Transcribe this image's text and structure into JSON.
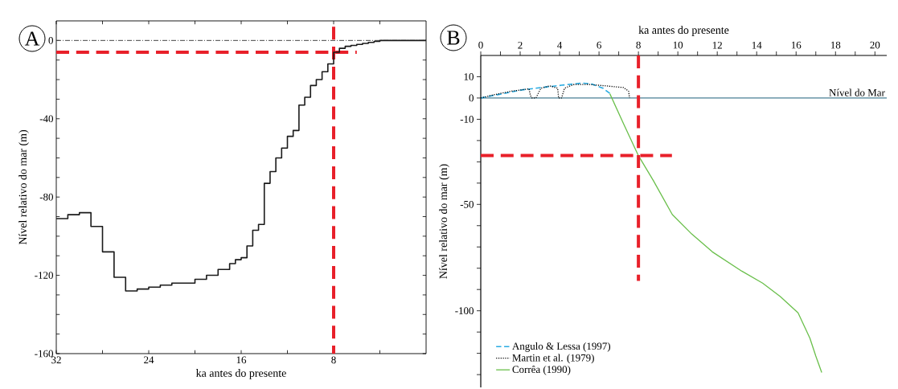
{
  "chart_data": [
    {
      "type": "step",
      "xlabel": "ka antes do presente",
      "ylabel": "Nível relativo do mar (m)",
      "annotations": [
        "A"
      ],
      "xlim": [
        32,
        0
      ],
      "ylim": [
        -160,
        10
      ],
      "xticks": [
        32,
        {
          "value": 28,
          "label": null
        },
        24,
        {
          "value": 20,
          "label": null
        },
        16,
        {
          "value": 12,
          "label": null
        },
        8,
        {
          "value": 4,
          "label": null
        }
      ],
      "yticks": [
        -160,
        {
          "value": -150,
          "label": null
        },
        {
          "value": -140,
          "label": null
        },
        {
          "value": -130,
          "label": null
        },
        -120,
        {
          "value": -110,
          "label": null
        },
        {
          "value": -100,
          "label": null
        },
        {
          "value": -90,
          "label": null
        },
        -80,
        {
          "value": -70,
          "label": null
        },
        {
          "value": -60,
          "label": null
        },
        {
          "value": -50,
          "label": null
        },
        -40,
        {
          "value": -30,
          "label": null
        },
        {
          "value": -20,
          "label": null
        },
        {
          "value": -10,
          "label": null
        },
        0
      ],
      "ref_lines": [
        {
          "axis": "y",
          "value": 0,
          "color": "#444444",
          "line_style": "dashdot"
        }
      ],
      "series": [
        {
          "type": "line",
          "color": "#e8202a",
          "line_style": "dashed",
          "x": [
            32,
            6
          ],
          "values": [
            -6,
            -6
          ]
        },
        {
          "type": "line",
          "color": "#e8202a",
          "line_style": "dashed",
          "x": [
            8,
            8
          ],
          "values": [
            7,
            -160
          ]
        },
        {
          "color": "#1a1a1a",
          "x": [
            32,
            31,
            30,
            29,
            28,
            27,
            26,
            25,
            24,
            23,
            22,
            21,
            20,
            19,
            18,
            17,
            16.5,
            16,
            15.5,
            15,
            14.5,
            14,
            13.5,
            13,
            12.5,
            12,
            11.5,
            11,
            10.5,
            10,
            9.5,
            9,
            8.5,
            8,
            7.5,
            7,
            6.5,
            6,
            5.5,
            5,
            4.5,
            4,
            0
          ],
          "values": [
            -91,
            -89,
            -88,
            -95,
            -108,
            -121,
            -128,
            -127,
            -126,
            -125,
            -124,
            -124,
            -122,
            -120,
            -117,
            -114,
            -112,
            -111,
            -105,
            -97,
            -94,
            -73,
            -67,
            -60,
            -55,
            -49,
            -46,
            -33,
            -29,
            -23,
            -20,
            -16,
            -12,
            -6,
            -4,
            -3,
            -2.5,
            -2,
            -1.5,
            -1,
            -0.5,
            0,
            0
          ]
        }
      ]
    },
    {
      "type": "line",
      "xlabel": "ka antes do presente",
      "ylabel": "Nível relativo do mar (m)",
      "annotations": [
        "B"
      ],
      "legend": "bottom left",
      "xlim": [
        0,
        20.6
      ],
      "ylim": [
        -136,
        20
      ],
      "xticks": [
        0,
        {
          "value": 1,
          "label": null
        },
        2,
        {
          "value": 3,
          "label": null
        },
        4,
        {
          "value": 5,
          "label": null
        },
        6,
        {
          "value": 7,
          "label": null
        },
        8,
        {
          "value": 9,
          "label": null
        },
        10,
        {
          "value": 11,
          "label": null
        },
        12,
        {
          "value": 13,
          "label": null
        },
        14,
        {
          "value": 15,
          "label": null
        },
        16,
        {
          "value": 17,
          "label": null
        },
        18,
        {
          "value": 19,
          "label": null
        },
        20
      ],
      "yticks": [
        {
          "value": -130,
          "label": null
        },
        {
          "value": -120,
          "label": null
        },
        {
          "value": -110,
          "label": null
        },
        -100,
        {
          "value": -90,
          "label": null
        },
        {
          "value": -80,
          "label": null
        },
        {
          "value": -70,
          "label": null
        },
        {
          "value": -60,
          "label": null
        },
        -50,
        {
          "value": -40,
          "label": null
        },
        {
          "value": -30,
          "label": null
        },
        {
          "value": -20,
          "label": null
        },
        -10,
        0,
        10
      ],
      "ref_lines": [
        {
          "axis": "y",
          "value": 0,
          "label": "Nível do Mar",
          "color": "#1a5e78",
          "line_style": "solid"
        }
      ],
      "series": [
        {
          "name": "Angulo & Lessa (1997)",
          "color": "#29abe2",
          "line_style": "dashed",
          "x": [
            0,
            2.15,
            4.1,
            5.15,
            5.6,
            6.2,
            6.65
          ],
          "values": [
            0,
            3.9,
            6,
            7,
            6.7,
            4.6,
            1.5
          ]
        },
        {
          "name": "Martin et al. (1979)",
          "color": "#000000",
          "line_style": "dotted",
          "x": [
            0,
            0.65,
            1.55,
            2.45,
            2.52,
            2.6,
            2.8,
            3.05,
            3.5,
            3.9,
            3.95,
            4.1,
            4.25,
            4.7,
            5.45,
            6.35,
            7.25,
            7.5,
            7.55
          ],
          "values": [
            0,
            1.5,
            3.2,
            4.3,
            1.1,
            0,
            0,
            4.6,
            5.7,
            4.6,
            0,
            0,
            4.6,
            6.3,
            6.4,
            5.7,
            4.9,
            3.2,
            0
          ]
        },
        {
          "name": "Corrêa (1990)",
          "color": "#6abf4b",
          "line_style": "solid",
          "x": [
            6.55,
            7.25,
            8.0,
            8.75,
            9.72,
            10.7,
            11.75,
            13.25,
            14.3,
            15.2,
            16.1,
            16.7,
            17.0,
            17.3
          ],
          "values": [
            2,
            -12.2,
            -27.1,
            -38.7,
            -54.8,
            -63.9,
            -72.3,
            -81.4,
            -87,
            -93.3,
            -101,
            -112.9,
            -121.3,
            -129
          ]
        },
        {
          "color": "#e8202a",
          "line_style": "dashed",
          "x": [
            0,
            9.7
          ],
          "values": [
            -27,
            -27
          ]
        },
        {
          "color": "#e8202a",
          "line_style": "dashed",
          "x": [
            8,
            8
          ],
          "values": [
            20,
            -86
          ]
        }
      ]
    }
  ]
}
